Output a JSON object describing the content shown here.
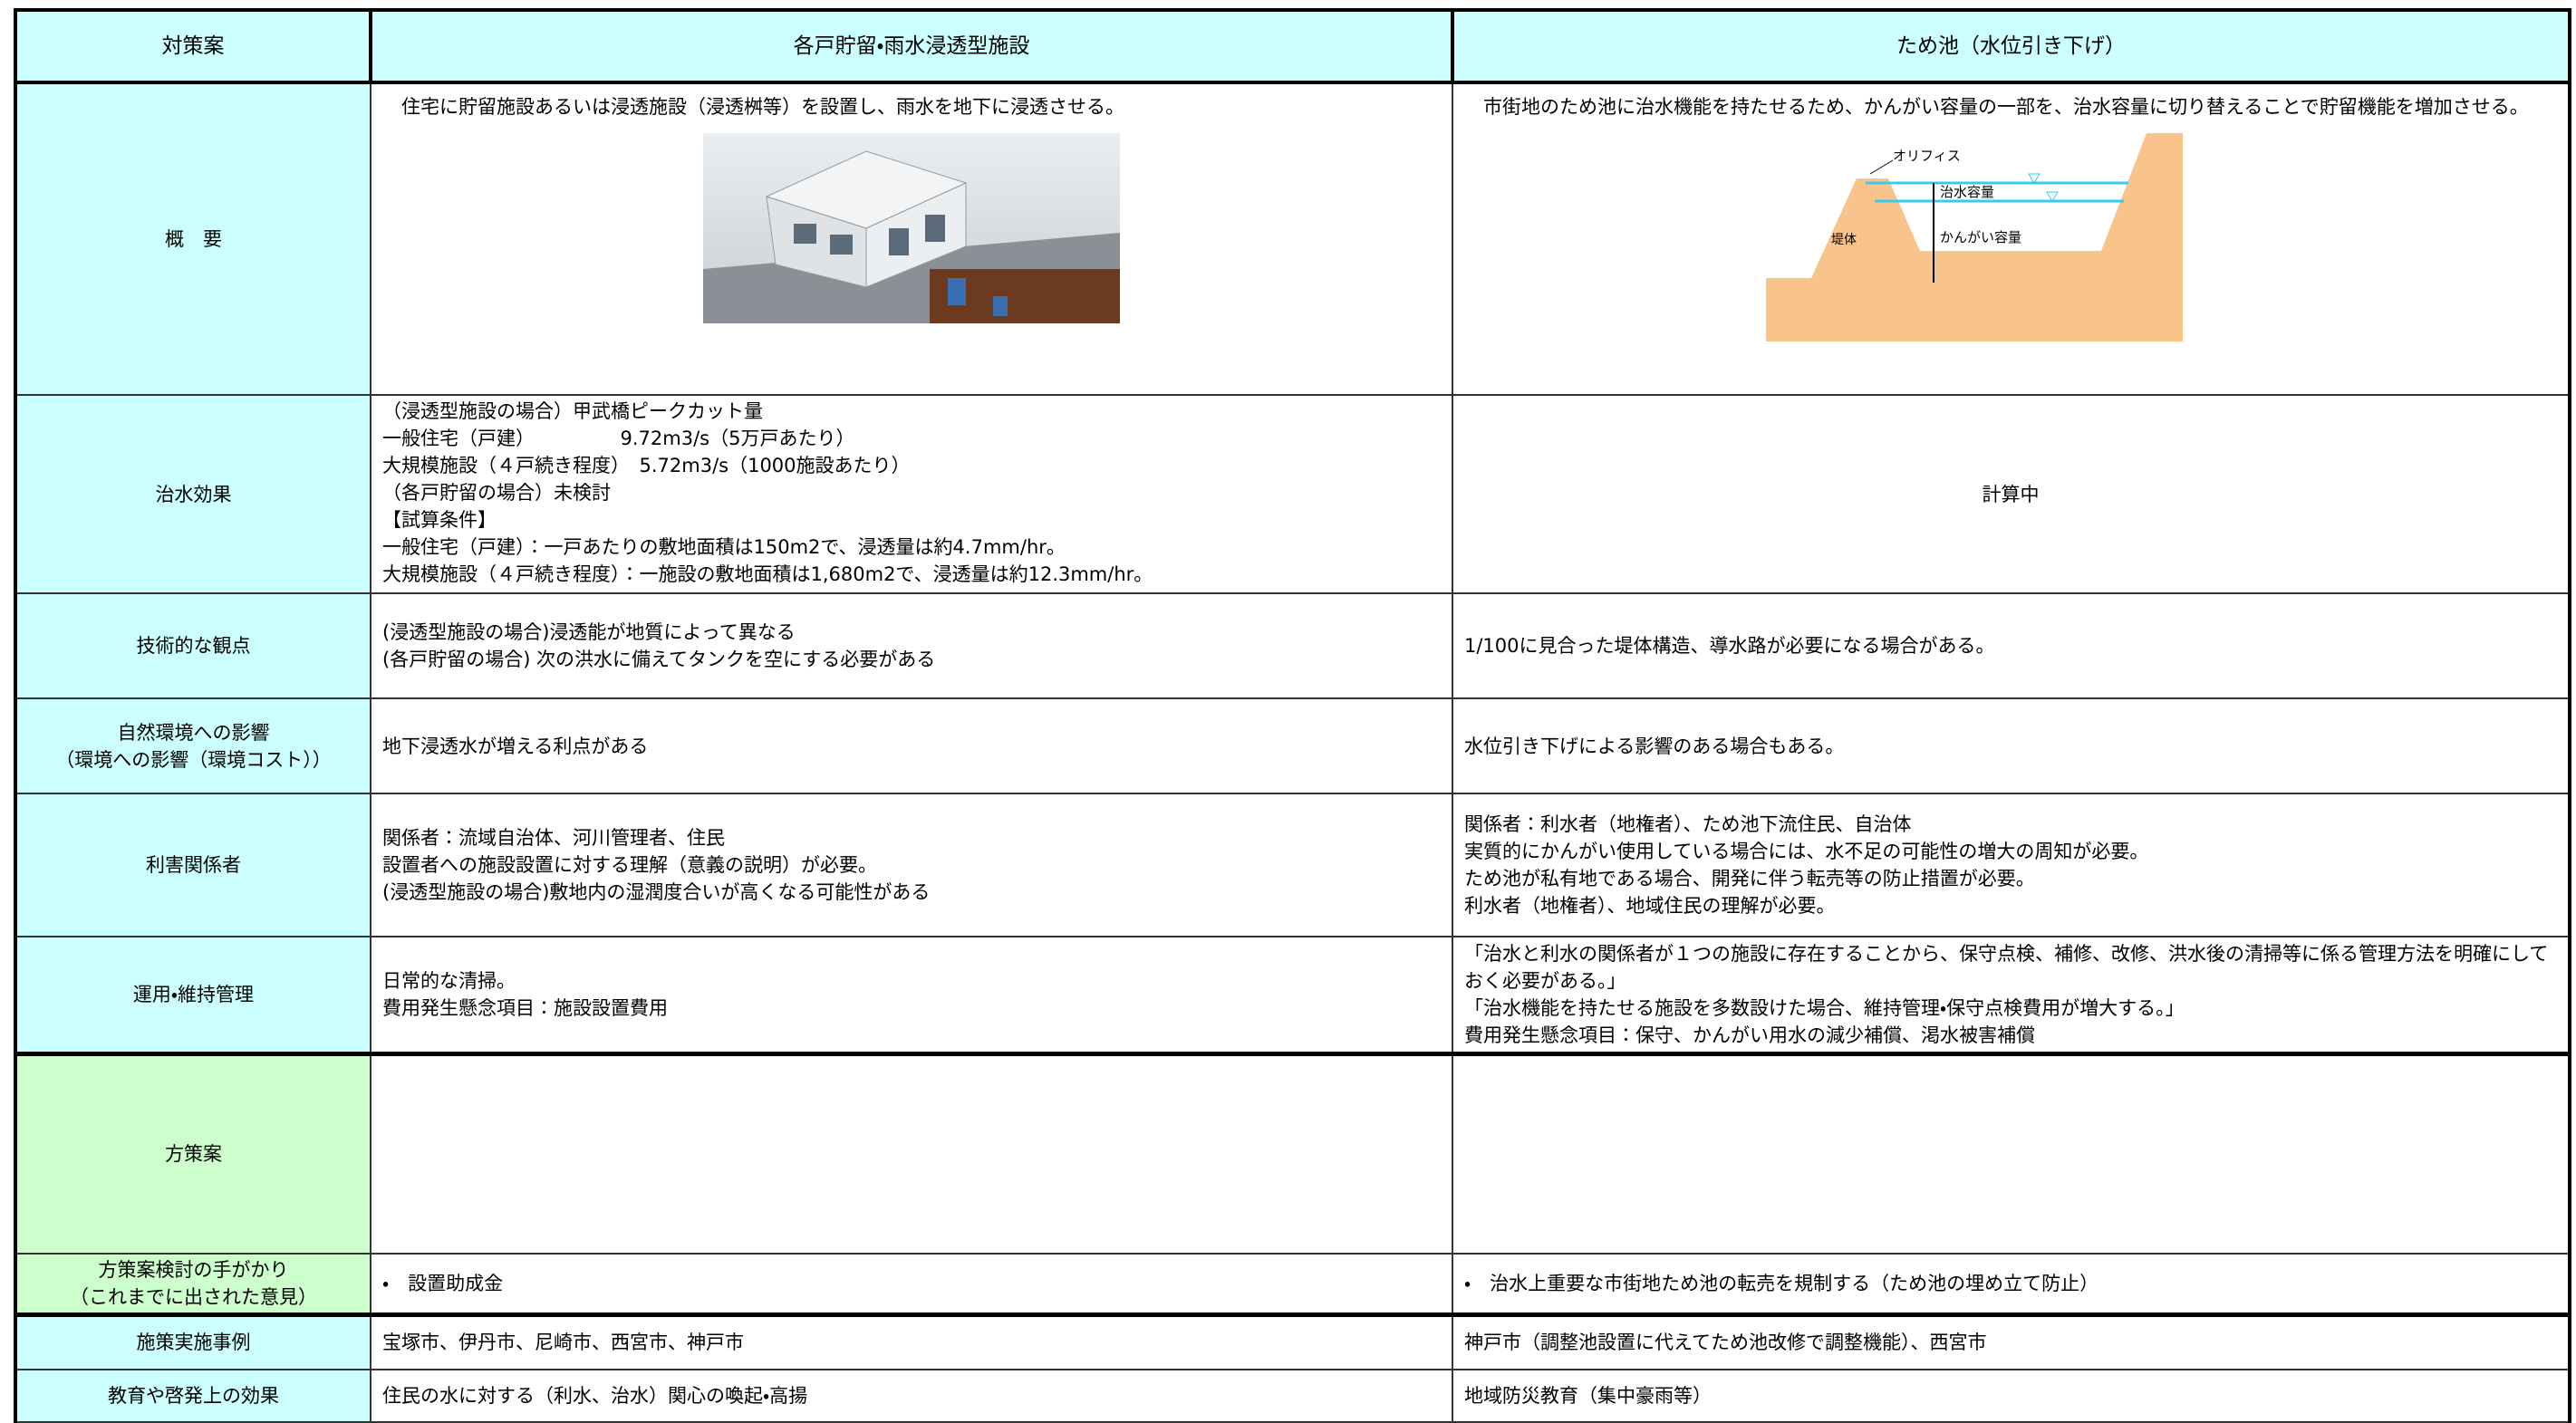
{
  "table": {
    "header": [
      "対策案",
      "各戸貯留・雨水浸透型施設",
      "ため池（水位引き下げ）"
    ],
    "rows": [
      [
        [
          "概　要"
        ],
        [
          "　住宅に貯留施設あるいは浸透施設（浸透桝等）を設置し、雨水を地下に浸透させる。"
        ],
        [
          "　市街地のため池に治水機能を持たせるため、かんがい容量の一部を、治水容量に切り替えることで貯留機能を増加させる。"
        ]
      ],
      [
        [
          "治水効果"
        ],
        [
          "（浸透型施設の場合）甲武橋ピークカット量",
          "一般住宅（戸建）　　　　　9.72m3/s（5万戸あたり）",
          "大規模施設（４戸続き程度）　5.72m3/s（1000施設あたり）",
          "（各戸貯留の場合）未検討",
          "【試算条件】",
          "一般住宅（戸建）：一戸あたりの敷地面積は150m2で、浸透量は約4.7mm/hr。",
          "大規模施設（４戸続き程度）：一施設の敷地面積は1,680m2で、浸透量は約12.3mm/hr。"
        ],
        [
          "計算中"
        ]
      ],
      [
        [
          "技術的な観点"
        ],
        [
          "(浸透型施設の場合)浸透能が地質によって異なる",
          "(各戸貯留の場合) 次の洪水に備えてタンクを空にする必要がある"
        ],
        [
          "1/100に見合った堤体構造、導水路が必要になる場合がある。"
        ]
      ],
      [
        [
          "自然環境への影響",
          "（環境への影響（環境コスト））"
        ],
        [
          "地下浸透水が増える利点がある"
        ],
        [
          "水位引き下げによる影響のある場合もある。"
        ]
      ],
      [
        [
          "利害関係者"
        ],
        [
          "関係者：流域自治体、河川管理者、住民",
          "設置者への施設設置に対する理解（意義の説明）が必要。",
          "(浸透型施設の場合)敷地内の湿潤度合いが高くなる可能性がある"
        ],
        [
          "関係者：利水者（地権者）、ため池下流住民、自治体",
          "実質的にかんがい使用している場合には、水不足の可能性の増大の周知が必要。",
          "ため池が私有地である場合、開発に伴う転売等の防止措置が必要。",
          "利水者（地権者）、地域住民の理解が必要。"
        ]
      ],
      [
        [
          "運用・維持管理"
        ],
        [
          "日常的な清掃。",
          "費用発生懸念項目：施設設置費用"
        ],
        [
          "「治水と利水の関係者が１つの施設に存在することから、保守点検、補修、改修、洪水後の清掃等に係る管理方法を明確にしておく必要がある。」",
          "「治水機能を持たせる施設を多数設けた場合、維持管理・保守点検費用が増大する。」",
          "費用発生懸念項目：保守、かんがい用水の減少補償、渇水被害補償"
        ]
      ],
      [
        [
          "方策案"
        ],
        [],
        []
      ],
      [
        [
          "方策案検討の手がかり",
          "（これまでに出された意見）"
        ],
        [
          "・　設置助成金"
        ],
        [
          "・　治水上重要な市街地ため池の転売を規制する（ため池の埋め立て防止）"
        ]
      ],
      [
        [
          "施策実施事例"
        ],
        [
          "宝塚市、伊丹市、尼崎市、西宮市、神戸市"
        ],
        [
          "神戸市（調整池設置に代えてため池改修で調整機能）、西宮市"
        ]
      ],
      [
        [
          "教育や啓発上の効果"
        ],
        [
          "住民の水に対する（利水、治水）関心の喚起・高揚"
        ],
        [
          "地域防災教育（集中豪雨等）"
        ]
      ]
    ]
  },
  "diagram": {
    "labels": [
      "オリフィス",
      "治水容量",
      "かんがい容量",
      "堤体"
    ]
  }
}
